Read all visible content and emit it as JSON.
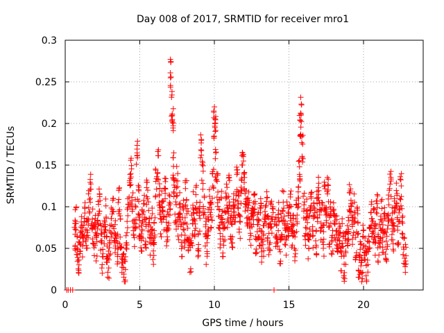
{
  "chart_data": {
    "type": "scatter",
    "title": "Day 008 of 2017, SRMTID for receiver mro1",
    "xlabel": "GPS time / hours",
    "ylabel": "SRMTID / TECUs",
    "xlim": [
      0,
      24
    ],
    "ylim": [
      0,
      0.3
    ],
    "xticks": [
      0,
      5,
      10,
      15,
      20
    ],
    "yticks": [
      0,
      0.05,
      0.1,
      0.15,
      0.2,
      0.25,
      0.3
    ],
    "xtick_labels": [
      "0",
      "5",
      "10",
      "15",
      "20"
    ],
    "ytick_labels": [
      "0",
      "0.05",
      "0.1",
      "0.15",
      "0.2",
      "0.25",
      "0.3"
    ],
    "grid": true,
    "marker": "+",
    "color": "#ff0000",
    "series": [
      {
        "name": "SRMTID",
        "x": [
          0.1,
          0.2,
          0.35,
          0.5,
          0.65,
          0.7,
          0.8,
          0.9,
          1.0,
          1.1,
          1.2,
          1.3,
          1.4,
          1.5,
          1.6,
          1.7,
          1.8,
          1.9,
          2.0,
          2.1,
          2.2,
          2.3,
          2.4,
          2.5,
          2.6,
          2.7,
          2.8,
          2.9,
          3.0,
          3.1,
          3.2,
          3.3,
          3.4,
          3.5,
          3.6,
          3.7,
          3.8,
          3.9,
          4.0,
          4.1,
          4.2,
          4.3,
          4.4,
          4.5,
          4.6,
          4.7,
          4.8,
          4.9,
          5.0,
          5.1,
          5.2,
          5.3,
          5.4,
          5.5,
          5.6,
          5.7,
          5.8,
          5.9,
          6.0,
          6.1,
          6.2,
          6.3,
          6.4,
          6.5,
          6.6,
          6.7,
          6.8,
          6.9,
          7.0,
          7.1,
          7.15,
          7.2,
          7.25,
          7.3,
          7.4,
          7.5,
          7.6,
          7.7,
          7.8,
          7.9,
          8.0,
          8.1,
          8.2,
          8.3,
          8.4,
          8.5,
          8.6,
          8.7,
          8.8,
          8.9,
          9.0,
          9.1,
          9.2,
          9.3,
          9.4,
          9.5,
          9.6,
          9.7,
          9.8,
          9.9,
          10.0,
          10.05,
          10.1,
          10.2,
          10.3,
          10.4,
          10.5,
          10.6,
          10.7,
          10.8,
          10.9,
          11.0,
          11.1,
          11.2,
          11.3,
          11.4,
          11.5,
          11.6,
          11.7,
          11.8,
          11.9,
          12.0,
          12.1,
          12.2,
          12.3,
          12.4,
          12.5,
          12.6,
          12.7,
          12.8,
          12.9,
          13.0,
          13.1,
          13.2,
          13.3,
          13.4,
          13.5,
          13.6,
          13.7,
          13.8,
          13.9,
          14.0,
          14.1,
          14.2,
          14.3,
          14.4,
          14.5,
          14.6,
          14.7,
          14.8,
          14.9,
          15.0,
          15.1,
          15.2,
          15.3,
          15.4,
          15.5,
          15.6,
          15.7,
          15.75,
          15.8,
          15.9,
          16.0,
          16.1,
          16.2,
          16.3,
          16.4,
          16.5,
          16.6,
          16.7,
          16.8,
          16.9,
          17.0,
          17.1,
          17.2,
          17.3,
          17.4,
          17.5,
          17.6,
          17.7,
          17.8,
          17.9,
          18.0,
          18.1,
          18.2,
          18.3,
          18.4,
          18.5,
          18.6,
          18.7,
          18.8,
          18.9,
          19.0,
          19.1,
          19.2,
          19.3,
          19.4,
          19.5,
          19.6,
          19.7,
          19.8,
          19.9,
          20.0,
          20.1,
          20.2,
          20.3,
          20.4,
          20.5,
          20.6,
          20.7,
          20.8,
          20.9,
          21.0,
          21.1,
          21.2,
          21.3,
          21.4,
          21.5,
          21.6,
          21.7,
          21.8,
          21.9,
          22.0,
          22.1,
          22.2,
          22.3,
          22.4,
          22.5,
          22.6,
          22.7,
          22.8
        ],
        "y": [
          0.0,
          0.0,
          0.0,
          0.0,
          0.06,
          0.085,
          0.05,
          0.04,
          0.055,
          0.07,
          0.05,
          0.085,
          0.065,
          0.07,
          0.1,
          0.12,
          0.08,
          0.06,
          0.07,
          0.05,
          0.09,
          0.11,
          0.06,
          0.04,
          0.07,
          0.09,
          0.05,
          0.03,
          0.06,
          0.08,
          0.095,
          0.06,
          0.07,
          0.05,
          0.11,
          0.07,
          0.04,
          0.03,
          0.02,
          0.06,
          0.09,
          0.12,
          0.14,
          0.1,
          0.07,
          0.09,
          0.17,
          0.11,
          0.075,
          0.06,
          0.08,
          0.1,
          0.07,
          0.12,
          0.09,
          0.06,
          0.08,
          0.05,
          0.07,
          0.13,
          0.15,
          0.11,
          0.08,
          0.1,
          0.09,
          0.12,
          0.07,
          0.08,
          0.1,
          0.26,
          0.22,
          0.2,
          0.15,
          0.12,
          0.09,
          0.13,
          0.08,
          0.1,
          0.06,
          0.09,
          0.07,
          0.12,
          0.08,
          0.06,
          0.04,
          0.07,
          0.1,
          0.08,
          0.11,
          0.06,
          0.09,
          0.17,
          0.14,
          0.1,
          0.07,
          0.05,
          0.08,
          0.11,
          0.09,
          0.13,
          0.2,
          0.21,
          0.15,
          0.12,
          0.09,
          0.07,
          0.1,
          0.06,
          0.08,
          0.11,
          0.09,
          0.12,
          0.08,
          0.07,
          0.1,
          0.09,
          0.13,
          0.1,
          0.08,
          0.12,
          0.15,
          0.14,
          0.11,
          0.09,
          0.1,
          0.07,
          0.08,
          0.09,
          0.11,
          0.06,
          0.08,
          0.07,
          0.09,
          0.05,
          0.06,
          0.08,
          0.1,
          0.07,
          0.06,
          0.09,
          0.08,
          0.0,
          0.07,
          0.06,
          0.09,
          0.05,
          0.08,
          0.1,
          0.07,
          0.06,
          0.09,
          0.08,
          0.1,
          0.06,
          0.07,
          0.05,
          0.09,
          0.11,
          0.14,
          0.2,
          0.22,
          0.17,
          0.1,
          0.07,
          0.09,
          0.05,
          0.08,
          0.11,
          0.07,
          0.09,
          0.06,
          0.1,
          0.12,
          0.08,
          0.09,
          0.06,
          0.11,
          0.08,
          0.12,
          0.07,
          0.09,
          0.06,
          0.1,
          0.08,
          0.07,
          0.05,
          0.06,
          0.04,
          0.07,
          0.03,
          0.05,
          0.06,
          0.08,
          0.11,
          0.09,
          0.07,
          0.1,
          0.05,
          0.08,
          0.03,
          0.04,
          0.02,
          0.06,
          0.05,
          0.03,
          0.04,
          0.06,
          0.09,
          0.07,
          0.08,
          0.06,
          0.1,
          0.05,
          0.07,
          0.09,
          0.06,
          0.08,
          0.05,
          0.07,
          0.1,
          0.13,
          0.08,
          0.06,
          0.09,
          0.11,
          0.07,
          0.1,
          0.12,
          0.08,
          0.05,
          0.04
        ]
      }
    ]
  }
}
